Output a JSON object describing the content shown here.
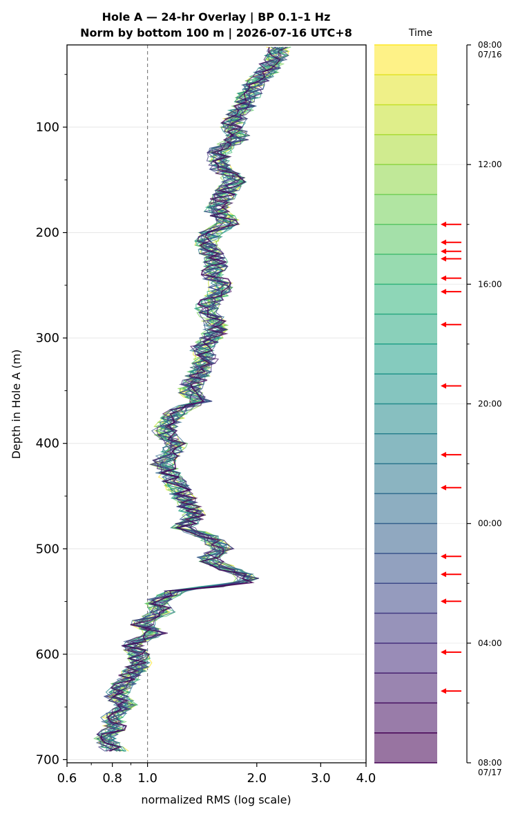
{
  "chart_data": {
    "type": "line",
    "title": "Hole A — 24-hr Overlay  |  BP 0.1–1 Hz",
    "subtitle": "Norm by bottom 100 m  |  2026-07-16 UTC+8",
    "xlabel": "normalized RMS  (log scale)",
    "ylabel": "Depth in Hole A (m)",
    "x_scale": "log",
    "xlim": [
      0.6,
      4.0
    ],
    "ylim": [
      703,
      22
    ],
    "y_inverted": true,
    "x_ticks": [
      "0.6",
      "0.8",
      "1.0",
      "2.0",
      "3.0",
      "4.0"
    ],
    "x_tick_values": [
      0.6,
      0.8,
      1.0,
      2.0,
      3.0,
      4.0
    ],
    "y_ticks": [
      "100",
      "200",
      "300",
      "400",
      "500",
      "600",
      "700"
    ],
    "y_tick_values": [
      100,
      200,
      300,
      400,
      500,
      600,
      700
    ],
    "reference_line": {
      "x": 1.0,
      "style": "dashed",
      "color": "#808080"
    },
    "grid": "horizontal",
    "colormap": "viridis",
    "n_curves": 24,
    "depth_profile": {
      "depth": [
        30,
        40,
        50,
        60,
        70,
        80,
        90,
        100,
        110,
        120,
        130,
        140,
        150,
        160,
        170,
        180,
        190,
        200,
        210,
        220,
        230,
        240,
        250,
        260,
        270,
        280,
        290,
        300,
        310,
        320,
        330,
        340,
        350,
        360,
        370,
        380,
        390,
        400,
        410,
        420,
        430,
        440,
        450,
        460,
        470,
        480,
        490,
        500,
        510,
        520,
        530,
        540,
        550,
        560,
        570,
        580,
        590,
        600,
        610,
        620,
        630,
        640,
        650,
        660,
        670,
        680,
        690,
        700
      ],
      "median_rms": [
        2.3,
        2.2,
        2.1,
        1.95,
        1.9,
        1.85,
        1.75,
        1.7,
        1.8,
        1.6,
        1.55,
        1.6,
        1.75,
        1.65,
        1.6,
        1.55,
        1.7,
        1.5,
        1.45,
        1.5,
        1.55,
        1.5,
        1.6,
        1.55,
        1.45,
        1.5,
        1.55,
        1.5,
        1.4,
        1.45,
        1.4,
        1.35,
        1.3,
        1.4,
        1.2,
        1.15,
        1.1,
        1.2,
        1.15,
        1.1,
        1.15,
        1.2,
        1.25,
        1.3,
        1.35,
        1.25,
        1.5,
        1.6,
        1.45,
        1.7,
        1.95,
        1.2,
        1.05,
        1.1,
        0.95,
        1.05,
        0.9,
        0.95,
        0.95,
        0.9,
        0.85,
        0.82,
        0.88,
        0.8,
        0.82,
        0.76,
        0.8,
        0.9
      ],
      "spread": 0.08
    },
    "colorbar": {
      "title": "Time",
      "ticks": [
        "08:00\n07/16",
        "12:00",
        "16:00",
        "20:00",
        "00:00",
        "04:00",
        "08:00\n07/17"
      ],
      "tick_hours": [
        0,
        4,
        8,
        12,
        16,
        20,
        24
      ],
      "segments": 24,
      "arrow_hours": [
        6,
        6.6,
        6.9,
        7.15,
        7.8,
        8.25,
        9.35,
        11.4,
        13.7,
        14.8,
        17.1,
        17.7,
        18.6,
        20.3,
        21.6
      ]
    }
  }
}
